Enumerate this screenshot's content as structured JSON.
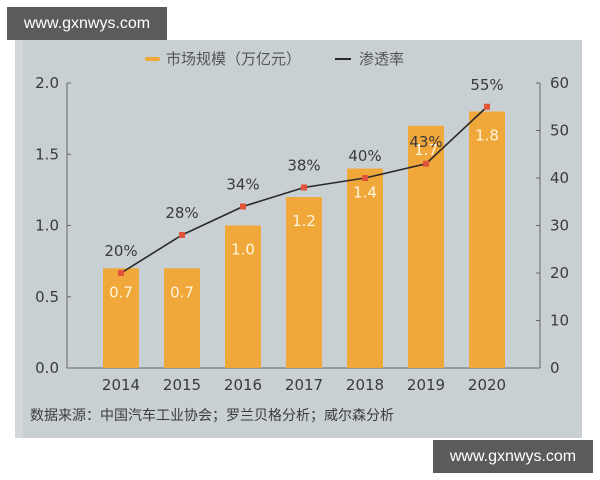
{
  "watermark": {
    "top": "www.gxnwys.com",
    "bottom": "www.gxnwys.com"
  },
  "legend": {
    "bar_label": "市场规模（万亿元）",
    "line_label": "渗透率"
  },
  "source": "数据来源：中国汽车工业协会；罗兰贝格分析；威尔森分析",
  "colors": {
    "bar": "#f1a83b",
    "line": "#2a2a2a",
    "marker": "#e0553a",
    "background": "#c9d0d3"
  },
  "chart_data": {
    "type": "bar+line",
    "title": "",
    "categories": [
      "2014",
      "2015",
      "2016",
      "2017",
      "2018",
      "2019",
      "2020"
    ],
    "series": [
      {
        "name": "市场规模（万亿元）",
        "type": "bar",
        "axis": "left",
        "values": [
          0.7,
          0.7,
          1.0,
          1.2,
          1.4,
          1.7,
          1.8
        ],
        "labels": [
          "0.7",
          "0.7",
          "1.0",
          "1.2",
          "1.4",
          "1.7",
          "1.8"
        ]
      },
      {
        "name": "渗透率",
        "type": "line",
        "axis": "right",
        "values": [
          20,
          28,
          34,
          38,
          40,
          43,
          55
        ],
        "labels": [
          "20%",
          "28%",
          "34%",
          "38%",
          "40%",
          "43%",
          "55%"
        ]
      }
    ],
    "left_axis": {
      "ticks": [
        "0.0",
        "0.5",
        "1.0",
        "1.5",
        "2.0"
      ],
      "range": [
        0,
        2.0
      ]
    },
    "right_axis": {
      "ticks": [
        "0",
        "10",
        "20",
        "30",
        "40",
        "50",
        "60"
      ],
      "range": [
        0,
        60
      ]
    },
    "xlabel": "",
    "ylabel": "",
    "grid": false,
    "legend_position": "top"
  }
}
